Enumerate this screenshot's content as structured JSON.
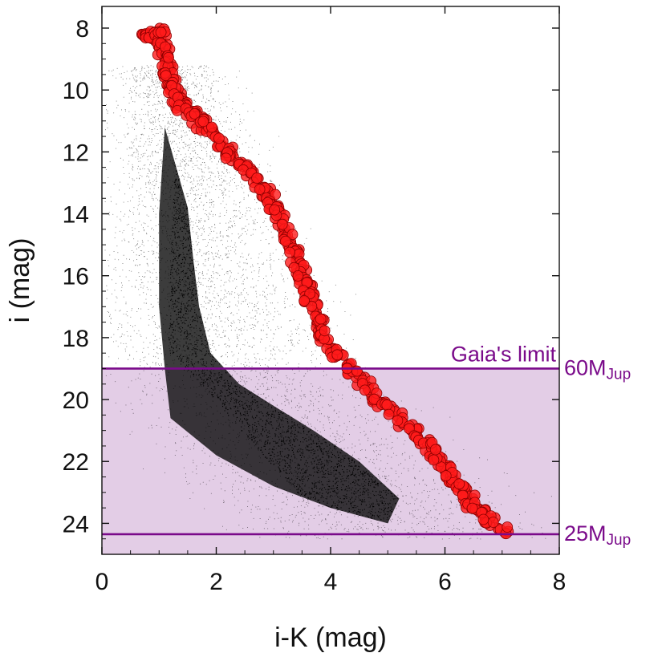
{
  "chart_data": {
    "type": "scatter",
    "xlabel": "i-K (mag)",
    "ylabel": "i (mag)",
    "xlim": [
      0,
      8
    ],
    "ylim": [
      25.0,
      7.3
    ],
    "y_inverted": true,
    "xticks": [
      "0",
      "2",
      "4",
      "6",
      "8"
    ],
    "yticks": [
      "8",
      "10",
      "12",
      "14",
      "16",
      "18",
      "20",
      "22",
      "24"
    ],
    "grid": false,
    "colors": {
      "background_cloud": "#000000",
      "highlight_points": "#ff1a1a",
      "highlight_edge": "#8b0000",
      "limit_line": "#7a0a8a",
      "shaded_region": "#e3cde6"
    },
    "series": [
      {
        "marker": "small black dots",
        "description_ref": "field population",
        "envelope": [
          [
            1.1,
            11.2
          ],
          [
            1.3,
            12.5
          ],
          [
            1.5,
            13.8
          ],
          [
            1.6,
            15.5
          ],
          [
            1.7,
            17.0
          ],
          [
            1.9,
            18.5
          ],
          [
            2.4,
            19.5
          ],
          [
            3.0,
            20.2
          ],
          [
            3.7,
            21.0
          ],
          [
            4.5,
            22.0
          ],
          [
            5.2,
            23.2
          ],
          [
            5.0,
            24.0
          ],
          [
            4.0,
            23.5
          ],
          [
            3.0,
            22.8
          ],
          [
            2.0,
            21.8
          ],
          [
            1.2,
            20.6
          ],
          [
            1.1,
            19.0
          ],
          [
            1.0,
            17.0
          ],
          [
            1.0,
            14.0
          ]
        ]
      },
      {
        "marker": "red circles",
        "points": [
          [
            0.7,
            8.2
          ],
          [
            0.85,
            8.3
          ],
          [
            1.0,
            8.1
          ],
          [
            1.05,
            8.6
          ],
          [
            1.1,
            9.0
          ],
          [
            1.15,
            9.4
          ],
          [
            1.2,
            9.8
          ],
          [
            1.3,
            10.2
          ],
          [
            1.4,
            10.5
          ],
          [
            1.6,
            10.8
          ],
          [
            1.75,
            11.1
          ],
          [
            2.0,
            11.5
          ],
          [
            2.2,
            12.0
          ],
          [
            2.45,
            12.4
          ],
          [
            2.7,
            12.9
          ],
          [
            2.9,
            13.4
          ],
          [
            3.0,
            13.8
          ],
          [
            3.15,
            14.3
          ],
          [
            3.3,
            14.9
          ],
          [
            3.4,
            15.5
          ],
          [
            3.5,
            16.0
          ],
          [
            3.6,
            16.6
          ],
          [
            3.75,
            17.2
          ],
          [
            3.85,
            17.8
          ],
          [
            4.0,
            18.4
          ],
          [
            4.3,
            18.9
          ],
          [
            4.6,
            19.5
          ],
          [
            4.9,
            20.1
          ],
          [
            5.2,
            20.6
          ],
          [
            5.5,
            21.1
          ],
          [
            5.8,
            21.7
          ],
          [
            6.0,
            22.3
          ],
          [
            6.2,
            22.8
          ],
          [
            6.45,
            23.3
          ],
          [
            6.7,
            23.8
          ],
          [
            7.05,
            24.3
          ]
        ]
      }
    ],
    "hlines": [
      {
        "y": 19.0,
        "label": "60M",
        "sub": "Jup"
      },
      {
        "y": 24.35,
        "label": "25M",
        "sub": "Jup"
      }
    ],
    "shaded_band": {
      "y_from": 19.0,
      "y_to": 25.0
    },
    "annotations": [
      {
        "text": "Gaia's limit"
      }
    ]
  }
}
